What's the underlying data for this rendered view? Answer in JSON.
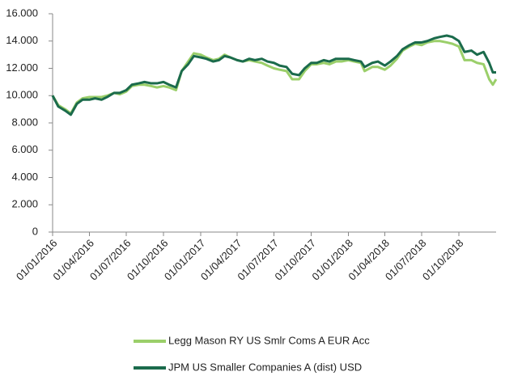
{
  "chart_data": {
    "type": "line",
    "x": [
      "2016-01-01",
      "2016-01-15",
      "2016-02-01",
      "2016-02-15",
      "2016-03-01",
      "2016-03-15",
      "2016-04-01",
      "2016-04-15",
      "2016-05-01",
      "2016-05-15",
      "2016-06-01",
      "2016-06-15",
      "2016-07-01",
      "2016-07-15",
      "2016-08-01",
      "2016-08-15",
      "2016-09-01",
      "2016-09-15",
      "2016-10-01",
      "2016-10-15",
      "2016-11-01",
      "2016-11-15",
      "2016-12-01",
      "2016-12-15",
      "2017-01-01",
      "2017-01-15",
      "2017-02-01",
      "2017-02-15",
      "2017-03-01",
      "2017-03-15",
      "2017-04-01",
      "2017-04-15",
      "2017-05-01",
      "2017-05-15",
      "2017-06-01",
      "2017-06-15",
      "2017-07-01",
      "2017-07-15",
      "2017-08-01",
      "2017-08-15",
      "2017-09-01",
      "2017-09-15",
      "2017-10-01",
      "2017-10-15",
      "2017-11-01",
      "2017-11-15",
      "2017-12-01",
      "2017-12-15",
      "2018-01-01",
      "2018-01-15",
      "2018-02-01",
      "2018-02-10",
      "2018-03-01",
      "2018-03-15",
      "2018-04-01",
      "2018-04-15",
      "2018-05-01",
      "2018-05-15",
      "2018-06-01",
      "2018-06-15",
      "2018-07-01",
      "2018-07-15",
      "2018-08-01",
      "2018-08-15",
      "2018-09-01",
      "2018-09-15",
      "2018-10-01",
      "2018-10-15",
      "2018-11-01",
      "2018-11-15",
      "2018-12-01",
      "2018-12-15",
      "2018-12-24",
      "2019-01-01"
    ],
    "series": [
      {
        "name": "Legg Mason RY US Smlr Coms A EUR Acc",
        "color": "#9bcf6a",
        "values": [
          10000,
          9300,
          9000,
          8700,
          9500,
          9800,
          9900,
          9900,
          9900,
          10000,
          10200,
          10100,
          10300,
          10700,
          10800,
          10800,
          10700,
          10600,
          10700,
          10600,
          10400,
          11800,
          12500,
          13100,
          13000,
          12800,
          12600,
          12700,
          13000,
          12800,
          12600,
          12500,
          12600,
          12500,
          12400,
          12200,
          12000,
          11900,
          11800,
          11200,
          11200,
          11800,
          12300,
          12300,
          12400,
          12300,
          12500,
          12500,
          12600,
          12500,
          12400,
          11800,
          12100,
          12100,
          11900,
          12200,
          12700,
          13300,
          13600,
          13800,
          13700,
          13900,
          14000,
          14000,
          13900,
          13800,
          13600,
          12600,
          12600,
          12400,
          12300,
          11200,
          10800,
          11200
        ]
      },
      {
        "name": "JPM US Smaller Companies A (dist) USD",
        "color": "#1b6b4c",
        "values": [
          10000,
          9200,
          8900,
          8600,
          9400,
          9700,
          9700,
          9800,
          9700,
          9900,
          10200,
          10200,
          10400,
          10800,
          10900,
          11000,
          10900,
          10900,
          11000,
          10800,
          10600,
          11800,
          12300,
          12900,
          12800,
          12700,
          12500,
          12600,
          12900,
          12800,
          12600,
          12500,
          12700,
          12600,
          12700,
          12500,
          12400,
          12200,
          12100,
          11600,
          11500,
          12000,
          12400,
          12400,
          12600,
          12500,
          12700,
          12700,
          12700,
          12600,
          12500,
          12100,
          12400,
          12500,
          12200,
          12500,
          12900,
          13400,
          13700,
          13900,
          13900,
          14000,
          14200,
          14300,
          14400,
          14300,
          14000,
          13200,
          13300,
          13000,
          13200,
          12400,
          11700,
          11700
        ]
      }
    ],
    "xlim": [
      "2016-01-01",
      "2019-01-01"
    ],
    "xticks": [
      {
        "value": "2016-01-01",
        "label": "01/01/2016"
      },
      {
        "value": "2016-04-01",
        "label": "01/04/2016"
      },
      {
        "value": "2016-07-01",
        "label": "01/07/2016"
      },
      {
        "value": "2016-10-01",
        "label": "01/10/2016"
      },
      {
        "value": "2017-01-01",
        "label": "01/01/2017"
      },
      {
        "value": "2017-04-01",
        "label": "01/04/2017"
      },
      {
        "value": "2017-07-01",
        "label": "01/07/2017"
      },
      {
        "value": "2017-10-01",
        "label": "01/10/2017"
      },
      {
        "value": "2018-01-01",
        "label": "01/01/2018"
      },
      {
        "value": "2018-04-01",
        "label": "01/04/2018"
      },
      {
        "value": "2018-07-01",
        "label": "01/07/2018"
      },
      {
        "value": "2018-10-01",
        "label": "01/10/2018"
      }
    ],
    "ylim": [
      0,
      16000
    ],
    "yticks": [
      0,
      {
        "value": 2000,
        "label": "2.000"
      },
      {
        "value": 4000,
        "label": "4.000"
      },
      {
        "value": 6000,
        "label": "6.000"
      },
      {
        "value": 8000,
        "label": "8.000"
      },
      {
        "value": 10000,
        "label": "10.000"
      },
      {
        "value": 12000,
        "label": "12.000"
      },
      {
        "value": 14000,
        "label": "14.000"
      },
      {
        "value": 16000,
        "label": "16.000"
      }
    ],
    "grid": false,
    "legend": "bottom"
  }
}
